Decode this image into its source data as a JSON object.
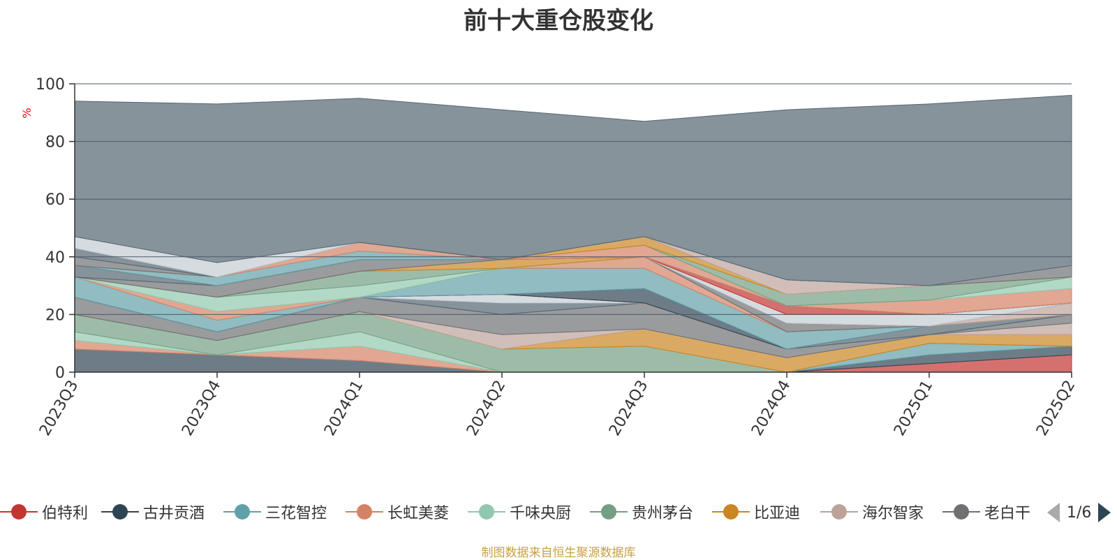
{
  "title": "前十大重仓股变化",
  "source_note": "制图数据来自恒生聚源数据库",
  "pager": {
    "text": "1/6"
  },
  "legend": [
    {
      "label": "伯特利",
      "color": "#c23531"
    },
    {
      "label": "古井贡酒",
      "color": "#2f4554"
    },
    {
      "label": "三花智控",
      "color": "#61a0a8"
    },
    {
      "label": "长虹美菱",
      "color": "#d48265"
    },
    {
      "label": "千味央厨",
      "color": "#91c7ae"
    },
    {
      "label": "贵州茅台",
      "color": "#749f83"
    },
    {
      "label": "比亚迪",
      "color": "#ca8622"
    },
    {
      "label": "海尔智家",
      "color": "#bda29a"
    },
    {
      "label": "老白干",
      "color": "#6e7074"
    }
  ],
  "chart_data": {
    "type": "area",
    "stacked": true,
    "title": "前十大重仓股变化",
    "ylabel": "%",
    "ylim": [
      0,
      100
    ],
    "yticks": [
      0,
      20,
      40,
      60,
      80,
      100
    ],
    "categories": [
      "2023Q3",
      "2023Q4",
      "2024Q1",
      "2024Q2",
      "2024Q3",
      "2024Q4",
      "2025Q1",
      "2025Q2"
    ],
    "grid": true,
    "series": [
      {
        "name": "伯特利",
        "color": "#c23531",
        "values": [
          0,
          0,
          0,
          0,
          0,
          0,
          3,
          6
        ]
      },
      {
        "name": "古井贡酒",
        "color": "#2f4554",
        "values": [
          8,
          6,
          4,
          0,
          0,
          0,
          3,
          3
        ]
      },
      {
        "name": "三花智控",
        "color": "#61a0a8",
        "values": [
          0,
          0,
          0,
          0,
          0,
          0,
          4,
          0
        ]
      },
      {
        "name": "长虹美菱",
        "color": "#d48265",
        "values": [
          3,
          0,
          5,
          0,
          0,
          0,
          0,
          0
        ]
      },
      {
        "name": "千味央厨",
        "color": "#91c7ae",
        "values": [
          3,
          0,
          5,
          0,
          0,
          0,
          0,
          0
        ]
      },
      {
        "name": "贵州茅台",
        "color": "#749f83",
        "values": [
          6,
          5,
          7,
          8,
          9,
          0,
          0,
          0
        ]
      },
      {
        "name": "比亚迪",
        "color": "#ca8622",
        "values": [
          0,
          0,
          0,
          0,
          6,
          5,
          3,
          4
        ]
      },
      {
        "name": "海尔智家",
        "color": "#bda29a",
        "values": [
          0,
          0,
          0,
          5,
          0,
          0,
          0,
          4
        ]
      },
      {
        "name": "老白干",
        "color": "#6e7074",
        "values": [
          6,
          3,
          5,
          7,
          9,
          3,
          0,
          3
        ]
      },
      {
        "name": "",
        "color": "#546570",
        "values": [
          0,
          0,
          0,
          4,
          0,
          0,
          3,
          0
        ]
      },
      {
        "name": "",
        "color": "#c4ccd3",
        "values": [
          0,
          0,
          0,
          3,
          0,
          0,
          0,
          0
        ]
      },
      {
        "name": "",
        "color": "#c23531",
        "values": [
          0,
          0,
          0,
          0,
          0,
          0,
          0,
          0
        ]
      },
      {
        "name": "",
        "color": "#2f4554",
        "values": [
          0,
          0,
          0,
          0,
          5,
          0,
          0,
          0
        ]
      },
      {
        "name": "",
        "color": "#61a0a8",
        "values": [
          7,
          4,
          0,
          9,
          7,
          6,
          0,
          0
        ]
      },
      {
        "name": "",
        "color": "#d48265",
        "values": [
          0,
          3,
          0,
          0,
          4,
          0,
          0,
          0
        ]
      },
      {
        "name": "",
        "color": "#91c7ae",
        "values": [
          0,
          5,
          4,
          0,
          0,
          0,
          0,
          0
        ]
      },
      {
        "name": "",
        "color": "#749f83",
        "values": [
          0,
          0,
          5,
          0,
          0,
          0,
          0,
          0
        ]
      },
      {
        "name": "",
        "color": "#ca8622",
        "values": [
          0,
          0,
          0,
          3,
          0,
          0,
          0,
          0
        ]
      },
      {
        "name": "",
        "color": "#bda29a",
        "values": [
          0,
          0,
          0,
          0,
          0,
          0,
          0,
          4
        ]
      },
      {
        "name": "",
        "color": "#6e7074",
        "values": [
          0,
          4,
          4,
          0,
          0,
          3,
          0,
          0
        ]
      },
      {
        "name": "",
        "color": "#546570",
        "values": [
          4,
          0,
          0,
          0,
          0,
          0,
          0,
          0
        ]
      },
      {
        "name": "",
        "color": "#c4ccd3",
        "values": [
          0,
          0,
          0,
          0,
          0,
          3,
          4,
          0
        ]
      },
      {
        "name": "",
        "color": "#c23531",
        "values": [
          0,
          0,
          0,
          0,
          0,
          3,
          0,
          0
        ]
      },
      {
        "name": "",
        "color": "#2f4554",
        "values": [
          0,
          0,
          0,
          0,
          0,
          0,
          0,
          0
        ]
      },
      {
        "name": "",
        "color": "#61a0a8",
        "values": [
          0,
          3,
          3,
          0,
          0,
          0,
          0,
          0
        ]
      },
      {
        "name": "",
        "color": "#d48265",
        "values": [
          0,
          0,
          3,
          0,
          4,
          0,
          5,
          5
        ]
      },
      {
        "name": "",
        "color": "#91c7ae",
        "values": [
          0,
          0,
          0,
          0,
          0,
          0,
          0,
          4
        ]
      },
      {
        "name": "",
        "color": "#749f83",
        "values": [
          0,
          0,
          0,
          0,
          0,
          4,
          5,
          0
        ]
      },
      {
        "name": "",
        "color": "#ca8622",
        "values": [
          0,
          0,
          0,
          0,
          3,
          0,
          0,
          0
        ]
      },
      {
        "name": "",
        "color": "#bda29a",
        "values": [
          0,
          0,
          0,
          0,
          0,
          5,
          0,
          0
        ]
      },
      {
        "name": "",
        "color": "#6e7074",
        "values": [
          3,
          0,
          0,
          0,
          0,
          0,
          0,
          4
        ]
      },
      {
        "name": "",
        "color": "#546570",
        "values": [
          3,
          0,
          0,
          0,
          0,
          0,
          0,
          0
        ]
      },
      {
        "name": "",
        "color": "#c4ccd3",
        "values": [
          4,
          5,
          0,
          0,
          0,
          0,
          0,
          0
        ]
      },
      {
        "name": "",
        "color": "#546570",
        "values": [
          47,
          55,
          50,
          52,
          40,
          59,
          63,
          59
        ]
      }
    ]
  }
}
